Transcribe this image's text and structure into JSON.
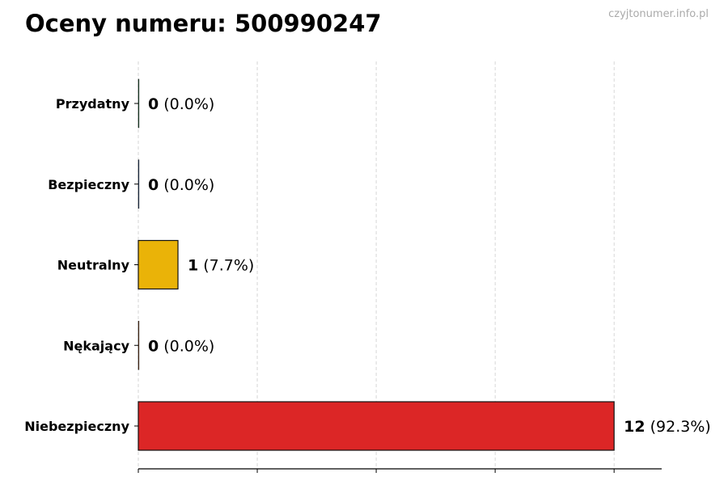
{
  "title": "Oceny numeru: 500990247",
  "watermark": "czyjtonumer.info.pl",
  "chart_data": {
    "type": "bar",
    "orientation": "horizontal",
    "title": "Oceny numeru: 500990247",
    "categories": [
      "Przydatny",
      "Bezpieczny",
      "Neutralny",
      "Nękający",
      "Niebezpieczny"
    ],
    "values": [
      0,
      0,
      1,
      0,
      12
    ],
    "data_labels": [
      {
        "count": "0",
        "percent": "(0.0%)"
      },
      {
        "count": "0",
        "percent": "(0.0%)"
      },
      {
        "count": "1",
        "percent": "(7.7%)"
      },
      {
        "count": "0",
        "percent": "(0.0%)"
      },
      {
        "count": "12",
        "percent": "(92.3%)"
      }
    ],
    "colors": [
      "#22c55e",
      "#3b82f6",
      "#eab308",
      "#f97316",
      "#dc2626"
    ],
    "xlim": [
      0,
      13.2
    ],
    "xticks": [
      0,
      3,
      6,
      9,
      12
    ],
    "xtick_labels_shown": false,
    "grid": "vertical dashed",
    "xlabel": "",
    "ylabel": ""
  }
}
